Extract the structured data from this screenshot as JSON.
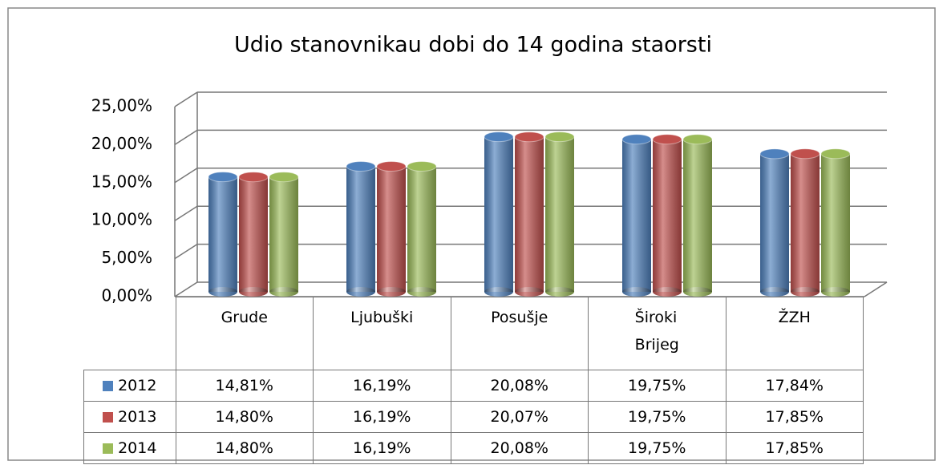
{
  "chart_data": {
    "type": "bar",
    "title": "Udio stanovnikau dobi do 14 godina staorsti",
    "categories": [
      "Grude",
      "Ljubuški",
      "Posušje",
      "Široki Brijeg",
      "ŽZH"
    ],
    "series": [
      {
        "name": "2012",
        "color": "#4f81bd",
        "values": [
          14.81,
          16.19,
          20.08,
          19.75,
          17.84
        ],
        "value_labels": [
          "14,81%",
          "16,19%",
          "20,08%",
          "19,75%",
          "17,84%"
        ]
      },
      {
        "name": "2013",
        "color": "#c0504d",
        "values": [
          14.8,
          16.19,
          20.07,
          19.75,
          17.85
        ],
        "value_labels": [
          "14,80%",
          "16,19%",
          "20,07%",
          "19,75%",
          "17,85%"
        ]
      },
      {
        "name": "2014",
        "color": "#9bbb59",
        "values": [
          14.8,
          16.19,
          20.08,
          19.75,
          17.85
        ],
        "value_labels": [
          "14,80%",
          "16,19%",
          "20,08%",
          "19,75%",
          "17,85%"
        ]
      }
    ],
    "ylim": [
      0,
      25
    ],
    "yticks": [
      {
        "value": 0,
        "label": "0,00%"
      },
      {
        "value": 5,
        "label": "5,00%"
      },
      {
        "value": 10,
        "label": "10,00%"
      },
      {
        "value": 15,
        "label": "15,00%"
      },
      {
        "value": 20,
        "label": "20,00%"
      },
      {
        "value": 25,
        "label": "25,00%"
      }
    ],
    "grid": true
  }
}
